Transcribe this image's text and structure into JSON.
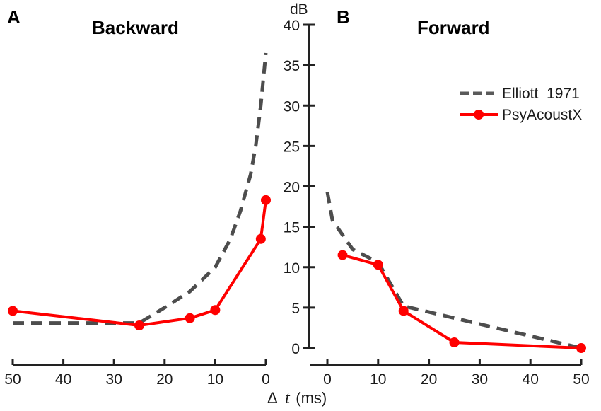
{
  "chart_data": [
    {
      "panel": "A",
      "type": "line",
      "title": "Backward",
      "xlabel": "Δ t (ms)",
      "ylabel": "dB",
      "xlim": [
        50,
        0
      ],
      "ylim": [
        0,
        40
      ],
      "x_reversed": true,
      "xticks": [
        50,
        40,
        30,
        20,
        10,
        0
      ],
      "grid": false,
      "series": [
        {
          "name": "Elliott  1971",
          "style": "dashed",
          "color": "#4d4d4d",
          "x": [
            50,
            25,
            20,
            15,
            10,
            7,
            5,
            3,
            2,
            1,
            0
          ],
          "y": [
            3.1,
            3.1,
            5.0,
            7.0,
            10.0,
            13.5,
            17.0,
            21.5,
            25.0,
            30.0,
            36.5
          ]
        },
        {
          "name": "PsyAcoustX",
          "style": "solid-marker",
          "color": "#ff0000",
          "x": [
            50,
            25,
            15,
            10,
            1,
            0
          ],
          "y": [
            4.6,
            2.8,
            3.7,
            4.7,
            13.5,
            18.3
          ]
        }
      ]
    },
    {
      "panel": "B",
      "type": "line",
      "title": "Forward",
      "xlabel": "Δ t (ms)",
      "ylabel": "dB",
      "xlim": [
        0,
        50
      ],
      "ylim": [
        0,
        40
      ],
      "xticks": [
        0,
        10,
        20,
        30,
        40,
        50
      ],
      "yticks": [
        0,
        5,
        10,
        15,
        20,
        25,
        30,
        35,
        40
      ],
      "grid": false,
      "legend": "right",
      "series": [
        {
          "name": "Elliott  1971",
          "style": "dashed",
          "color": "#4d4d4d",
          "x": [
            0,
            1,
            3,
            5,
            10,
            15,
            50
          ],
          "y": [
            19.3,
            15.8,
            14.0,
            12.2,
            10.6,
            5.2,
            0.0
          ]
        },
        {
          "name": "PsyAcoustX",
          "style": "solid-marker",
          "color": "#ff0000",
          "x": [
            3,
            10,
            15,
            25,
            50
          ],
          "y": [
            11.5,
            10.3,
            4.6,
            0.7,
            0.0
          ]
        }
      ]
    }
  ],
  "labels": {
    "panel_a": "A",
    "panel_b": "B",
    "title_a": "Backward",
    "title_b": "Forward",
    "y_unit": "dB",
    "x_label_delta": "Δ",
    "x_label_var": "t",
    "x_label_unit": "(ms)"
  },
  "legend": [
    {
      "label": "Elliott  1971",
      "style": "dashed",
      "color": "#4d4d4d"
    },
    {
      "label": "PsyAcoustX",
      "style": "solid-marker",
      "color": "#ff0000"
    }
  ]
}
